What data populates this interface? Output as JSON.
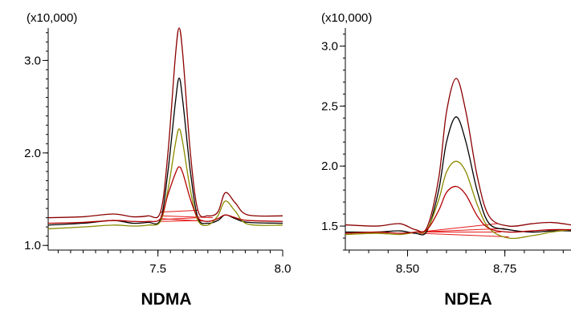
{
  "figure": {
    "background": "#ffffff",
    "axis_color": "#000000"
  },
  "chart_data": [
    {
      "type": "line",
      "title": "NDMA",
      "y_multiplier": "(x10,000)",
      "xlim": [
        7.06,
        8.0
      ],
      "ylim": [
        0.95,
        3.35
      ],
      "x_ticks": [
        7.5,
        8.0
      ],
      "x_tick_labels": [
        "7.5",
        "8.0"
      ],
      "y_ticks": [
        1.0,
        2.0,
        3.0
      ],
      "y_tick_labels": [
        "1.0",
        "2.0",
        "3.0"
      ],
      "grid": false,
      "legend": "none",
      "series": [
        {
          "color": "#8b0000",
          "points": [
            [
              7.06,
              1.3
            ],
            [
              7.2,
              1.31
            ],
            [
              7.32,
              1.34
            ],
            [
              7.4,
              1.31
            ],
            [
              7.46,
              1.32
            ],
            [
              7.51,
              1.36
            ],
            [
              7.54,
              2.0
            ],
            [
              7.57,
              3.05
            ],
            [
              7.585,
              3.35
            ],
            [
              7.6,
              3.05
            ],
            [
              7.63,
              2.0
            ],
            [
              7.66,
              1.38
            ],
            [
              7.7,
              1.32
            ],
            [
              7.74,
              1.36
            ],
            [
              7.77,
              1.57
            ],
            [
              7.81,
              1.46
            ],
            [
              7.86,
              1.33
            ],
            [
              8.0,
              1.32
            ]
          ]
        },
        {
          "color": "#000000",
          "points": [
            [
              7.06,
              1.22
            ],
            [
              7.2,
              1.24
            ],
            [
              7.32,
              1.27
            ],
            [
              7.4,
              1.24
            ],
            [
              7.46,
              1.25
            ],
            [
              7.51,
              1.28
            ],
            [
              7.54,
              1.8
            ],
            [
              7.57,
              2.55
            ],
            [
              7.585,
              2.81
            ],
            [
              7.6,
              2.55
            ],
            [
              7.63,
              1.8
            ],
            [
              7.66,
              1.3
            ],
            [
              7.7,
              1.24
            ],
            [
              7.74,
              1.27
            ],
            [
              7.77,
              1.33
            ],
            [
              7.81,
              1.29
            ],
            [
              7.86,
              1.25
            ],
            [
              8.0,
              1.24
            ]
          ]
        },
        {
          "color": "#8b8b00",
          "points": [
            [
              7.06,
              1.18
            ],
            [
              7.2,
              1.2
            ],
            [
              7.32,
              1.22
            ],
            [
              7.4,
              1.21
            ],
            [
              7.46,
              1.22
            ],
            [
              7.51,
              1.26
            ],
            [
              7.54,
              1.6
            ],
            [
              7.57,
              2.1
            ],
            [
              7.585,
              2.26
            ],
            [
              7.6,
              2.1
            ],
            [
              7.63,
              1.6
            ],
            [
              7.66,
              1.27
            ],
            [
              7.7,
              1.22
            ],
            [
              7.74,
              1.32
            ],
            [
              7.77,
              1.48
            ],
            [
              7.81,
              1.37
            ],
            [
              7.86,
              1.23
            ],
            [
              8.0,
              1.22
            ]
          ]
        },
        {
          "color": "#b30000",
          "points": [
            [
              7.06,
              1.24
            ],
            [
              7.2,
              1.25
            ],
            [
              7.32,
              1.27
            ],
            [
              7.4,
              1.26
            ],
            [
              7.46,
              1.26
            ],
            [
              7.51,
              1.29
            ],
            [
              7.54,
              1.55
            ],
            [
              7.57,
              1.78
            ],
            [
              7.585,
              1.85
            ],
            [
              7.6,
              1.78
            ],
            [
              7.63,
              1.5
            ],
            [
              7.66,
              1.3
            ],
            [
              7.7,
              1.26
            ],
            [
              7.74,
              1.29
            ],
            [
              7.77,
              1.33
            ],
            [
              7.81,
              1.3
            ],
            [
              7.86,
              1.27
            ],
            [
              8.0,
              1.26
            ]
          ]
        }
      ],
      "baselines": [
        {
          "color": "#e61a1a",
          "from": [
            7.51,
            1.36
          ],
          "to": [
            7.66,
            1.38
          ]
        },
        {
          "color": "#e61a1a",
          "from": [
            7.51,
            1.28
          ],
          "to": [
            7.66,
            1.3
          ]
        },
        {
          "color": "#e61a1a",
          "from": [
            7.51,
            1.26
          ],
          "to": [
            7.68,
            1.27
          ]
        },
        {
          "color": "#e61a1a",
          "from": [
            7.51,
            1.29
          ],
          "to": [
            7.7,
            1.26
          ]
        },
        {
          "color": "#e61a1a",
          "from": [
            7.51,
            1.32
          ],
          "to": [
            7.72,
            1.3
          ]
        }
      ]
    },
    {
      "type": "line",
      "title": "NDEA",
      "y_multiplier": "(x10,000)",
      "xlim": [
        8.34,
        8.92
      ],
      "ylim": [
        1.3,
        3.15
      ],
      "x_ticks": [
        8.5,
        8.75
      ],
      "x_tick_labels": [
        "8.50",
        "8.75"
      ],
      "y_ticks": [
        1.5,
        2.0,
        2.5,
        3.0
      ],
      "y_tick_labels": [
        "1.5",
        "2.0",
        "2.5",
        "3.0"
      ],
      "grid": false,
      "legend": "none",
      "series": [
        {
          "color": "#8b0000",
          "points": [
            [
              8.34,
              1.51
            ],
            [
              8.42,
              1.5
            ],
            [
              8.48,
              1.52
            ],
            [
              8.52,
              1.47
            ],
            [
              8.55,
              1.49
            ],
            [
              8.58,
              1.9
            ],
            [
              8.6,
              2.45
            ],
            [
              8.625,
              2.73
            ],
            [
              8.65,
              2.45
            ],
            [
              8.68,
              1.9
            ],
            [
              8.71,
              1.58
            ],
            [
              8.76,
              1.5
            ],
            [
              8.82,
              1.52
            ],
            [
              8.87,
              1.53
            ],
            [
              8.92,
              1.51
            ]
          ]
        },
        {
          "color": "#000000",
          "points": [
            [
              8.34,
              1.45
            ],
            [
              8.42,
              1.45
            ],
            [
              8.48,
              1.46
            ],
            [
              8.52,
              1.44
            ],
            [
              8.55,
              1.46
            ],
            [
              8.58,
              1.8
            ],
            [
              8.6,
              2.2
            ],
            [
              8.625,
              2.41
            ],
            [
              8.65,
              2.2
            ],
            [
              8.68,
              1.78
            ],
            [
              8.71,
              1.52
            ],
            [
              8.76,
              1.47
            ],
            [
              8.82,
              1.45
            ],
            [
              8.87,
              1.46
            ],
            [
              8.92,
              1.46
            ]
          ]
        },
        {
          "color": "#8b8b00",
          "points": [
            [
              8.34,
              1.43
            ],
            [
              8.42,
              1.44
            ],
            [
              8.48,
              1.43
            ],
            [
              8.52,
              1.45
            ],
            [
              8.55,
              1.47
            ],
            [
              8.58,
              1.72
            ],
            [
              8.6,
              1.95
            ],
            [
              8.625,
              2.04
            ],
            [
              8.65,
              1.95
            ],
            [
              8.68,
              1.67
            ],
            [
              8.71,
              1.48
            ],
            [
              8.76,
              1.4
            ],
            [
              8.82,
              1.42
            ],
            [
              8.87,
              1.45
            ],
            [
              8.92,
              1.47
            ]
          ]
        },
        {
          "color": "#b30000",
          "points": [
            [
              8.34,
              1.44
            ],
            [
              8.42,
              1.45
            ],
            [
              8.48,
              1.44
            ],
            [
              8.52,
              1.45
            ],
            [
              8.55,
              1.47
            ],
            [
              8.58,
              1.63
            ],
            [
              8.6,
              1.78
            ],
            [
              8.625,
              1.83
            ],
            [
              8.65,
              1.76
            ],
            [
              8.68,
              1.58
            ],
            [
              8.71,
              1.48
            ],
            [
              8.76,
              1.45
            ],
            [
              8.82,
              1.46
            ],
            [
              8.87,
              1.47
            ],
            [
              8.92,
              1.47
            ]
          ]
        }
      ],
      "baselines": [
        {
          "color": "#e61a1a",
          "from": [
            8.53,
            1.45
          ],
          "to": [
            8.73,
            1.52
          ]
        },
        {
          "color": "#e61a1a",
          "from": [
            8.53,
            1.45
          ],
          "to": [
            8.75,
            1.48
          ]
        },
        {
          "color": "#e61a1a",
          "from": [
            8.53,
            1.44
          ],
          "to": [
            8.76,
            1.41
          ]
        },
        {
          "color": "#e61a1a",
          "from": [
            8.53,
            1.45
          ],
          "to": [
            8.74,
            1.45
          ]
        }
      ]
    }
  ]
}
